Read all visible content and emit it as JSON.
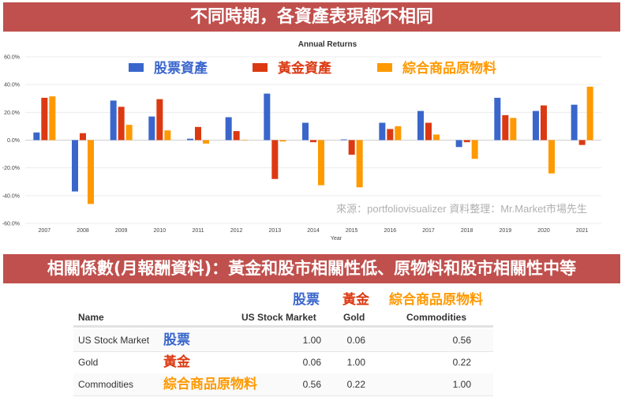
{
  "header": {
    "title": "不同時期，各資產表現都不相同"
  },
  "section2": {
    "title": "相關係數(月報酬資料)：黃金和股市相關性低、原物料和股市相關性中等"
  },
  "chart_data": {
    "type": "bar",
    "title": "Annual Returns",
    "xlabel": "Year",
    "ylabel": "",
    "ylim": [
      -60,
      60
    ],
    "yticks": [
      "60.0%",
      "40.0%",
      "20.0%",
      "0.0%",
      "-20.0%",
      "-40.0%",
      "-60.0%"
    ],
    "grid": true,
    "legend_position": "top",
    "categories": [
      "2007",
      "2008",
      "2009",
      "2010",
      "2011",
      "2012",
      "2013",
      "2014",
      "2015",
      "2016",
      "2017",
      "2018",
      "2019",
      "2020",
      "2021"
    ],
    "series": [
      {
        "name": "股票資產",
        "color": "#3a66cc",
        "values": [
          5.5,
          -37,
          28.5,
          17,
          1,
          16.5,
          33.5,
          12.5,
          0.5,
          12.5,
          21,
          -5,
          30.5,
          21,
          25.5
        ]
      },
      {
        "name": "黃金資產",
        "color": "#dc3912",
        "values": [
          30.5,
          5,
          24,
          29.5,
          9.5,
          6.5,
          -28,
          -1.5,
          -10.5,
          8,
          12.5,
          -1.5,
          18,
          25,
          -3.5
        ]
      },
      {
        "name": "綜合商品原物料",
        "color": "#ff9900",
        "values": [
          31.5,
          -46,
          11,
          7,
          -2.5,
          0,
          -1,
          -32.5,
          -34,
          10,
          4,
          -13.5,
          16,
          -24,
          38.5
        ]
      }
    ],
    "source_note": "來源：portfoliovisualizer  資料整理：Mr.Market市場先生"
  },
  "table": {
    "zh_headers": [
      {
        "label": "股票",
        "color": "#3a66cc"
      },
      {
        "label": "黃金",
        "color": "#dc3912"
      },
      {
        "label": "綜合商品原物料",
        "color": "#ff9900"
      }
    ],
    "columns": [
      "Name",
      "US Stock Market",
      "Gold",
      "Commodities"
    ],
    "rows": [
      {
        "name": "US Stock Market",
        "zh": "股票",
        "zh_color": "#3a66cc",
        "values": [
          "1.00",
          "0.06",
          "0.56"
        ]
      },
      {
        "name": "Gold",
        "zh": "黃金",
        "zh_color": "#dc3912",
        "values": [
          "0.06",
          "1.00",
          "0.22"
        ]
      },
      {
        "name": "Commodities",
        "zh": "綜合商品原物料",
        "zh_color": "#ff9900",
        "values": [
          "0.56",
          "0.22",
          "1.00"
        ]
      }
    ]
  }
}
